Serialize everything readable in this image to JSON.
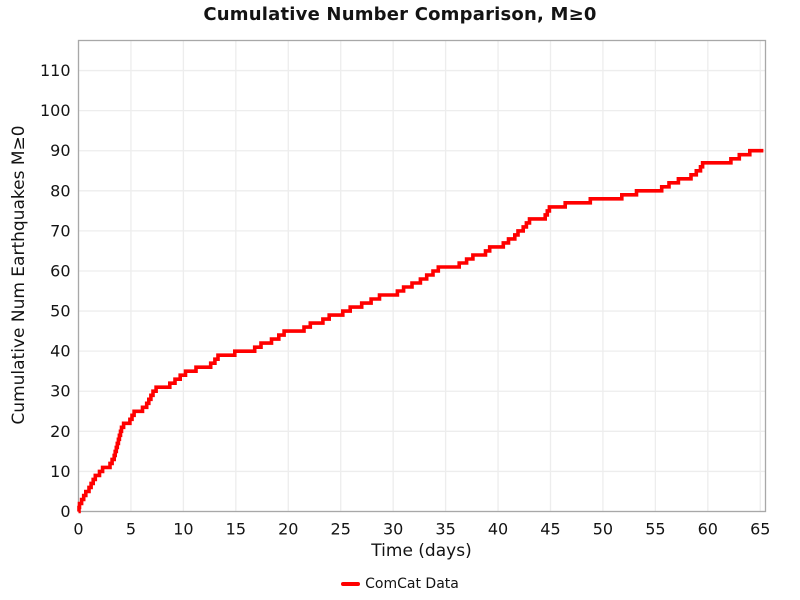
{
  "colors": {
    "background": "#ffffff",
    "series_red": "#ff0000",
    "grid": "#ededed",
    "spine": "#a8a8a8",
    "text": "#141414"
  },
  "chart_data": {
    "type": "line",
    "step_mode": "post",
    "title": "Cumulative Number Comparison, M≥0",
    "xlabel": "Time (days)",
    "ylabel": "Cumulative Num Earthquakes M≥0",
    "xlim": [
      0,
      65.5
    ],
    "ylim": [
      0,
      117.5
    ],
    "xticks": [
      0,
      5,
      10,
      15,
      20,
      25,
      30,
      35,
      40,
      45,
      50,
      55,
      60,
      65
    ],
    "yticks": [
      0,
      10,
      20,
      30,
      40,
      50,
      60,
      70,
      80,
      90,
      100,
      110
    ],
    "grid": true,
    "legend_position": "bottom-center",
    "series": [
      {
        "name": "ComCat Data",
        "color": "#ff0000",
        "points": [
          [
            0,
            0
          ],
          [
            0.05,
            1
          ],
          [
            0.1,
            2
          ],
          [
            0.3,
            3
          ],
          [
            0.5,
            4
          ],
          [
            0.7,
            5
          ],
          [
            1.0,
            6
          ],
          [
            1.2,
            7
          ],
          [
            1.4,
            8
          ],
          [
            1.6,
            9
          ],
          [
            2.0,
            10
          ],
          [
            2.3,
            11
          ],
          [
            3.0,
            12
          ],
          [
            3.2,
            13
          ],
          [
            3.4,
            14
          ],
          [
            3.5,
            15
          ],
          [
            3.6,
            16
          ],
          [
            3.7,
            17
          ],
          [
            3.8,
            18
          ],
          [
            3.9,
            19
          ],
          [
            4.0,
            20
          ],
          [
            4.1,
            21
          ],
          [
            4.3,
            22
          ],
          [
            4.9,
            23
          ],
          [
            5.1,
            24
          ],
          [
            5.3,
            25
          ],
          [
            6.1,
            26
          ],
          [
            6.5,
            27
          ],
          [
            6.7,
            28
          ],
          [
            6.9,
            29
          ],
          [
            7.1,
            30
          ],
          [
            7.4,
            31
          ],
          [
            8.7,
            32
          ],
          [
            9.2,
            33
          ],
          [
            9.7,
            34
          ],
          [
            10.2,
            35
          ],
          [
            11.2,
            36
          ],
          [
            12.6,
            37
          ],
          [
            13.0,
            38
          ],
          [
            13.3,
            39
          ],
          [
            14.9,
            40
          ],
          [
            16.8,
            41
          ],
          [
            17.4,
            42
          ],
          [
            18.4,
            43
          ],
          [
            19.1,
            44
          ],
          [
            19.6,
            45
          ],
          [
            21.5,
            46
          ],
          [
            22.1,
            47
          ],
          [
            23.3,
            48
          ],
          [
            23.9,
            49
          ],
          [
            25.2,
            50
          ],
          [
            25.9,
            51
          ],
          [
            27.0,
            52
          ],
          [
            27.9,
            53
          ],
          [
            28.7,
            54
          ],
          [
            30.4,
            55
          ],
          [
            31.0,
            56
          ],
          [
            31.8,
            57
          ],
          [
            32.6,
            58
          ],
          [
            33.2,
            59
          ],
          [
            33.8,
            60
          ],
          [
            34.3,
            61
          ],
          [
            36.3,
            62
          ],
          [
            37.0,
            63
          ],
          [
            37.6,
            64
          ],
          [
            38.8,
            65
          ],
          [
            39.2,
            66
          ],
          [
            40.5,
            67
          ],
          [
            41.0,
            68
          ],
          [
            41.6,
            69
          ],
          [
            41.9,
            70
          ],
          [
            42.4,
            71
          ],
          [
            42.7,
            72
          ],
          [
            43.0,
            73
          ],
          [
            44.5,
            74
          ],
          [
            44.7,
            75
          ],
          [
            44.9,
            76
          ],
          [
            46.4,
            77
          ],
          [
            48.8,
            78
          ],
          [
            51.8,
            79
          ],
          [
            53.2,
            80
          ],
          [
            55.6,
            81
          ],
          [
            56.3,
            82
          ],
          [
            57.2,
            83
          ],
          [
            58.4,
            84
          ],
          [
            58.9,
            85
          ],
          [
            59.3,
            86
          ],
          [
            59.5,
            87
          ],
          [
            62.2,
            88
          ],
          [
            63.0,
            89
          ],
          [
            64.0,
            90
          ],
          [
            65.3,
            90
          ]
        ]
      }
    ]
  }
}
